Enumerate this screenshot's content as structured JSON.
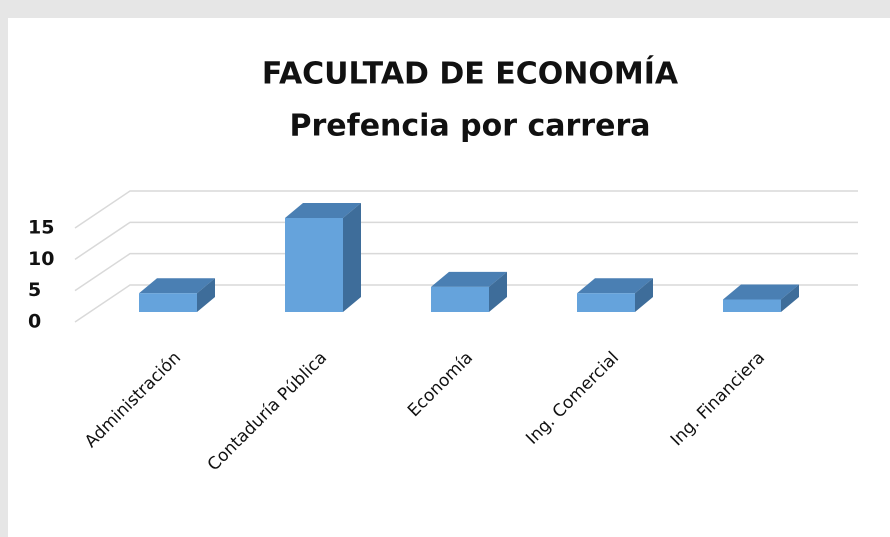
{
  "chart_data": {
    "type": "bar3d",
    "title": "FACULTAD DE ECONOMÍA",
    "subtitle": "Prefencia por carrera",
    "categories": [
      "Administración",
      "Contaduría Pública",
      "Economía",
      "Ing. Comercial",
      "Ing. Financiera"
    ],
    "values": [
      3,
      15,
      4,
      3,
      2
    ],
    "color": "#65a3dc",
    "ylim": [
      0,
      15
    ],
    "yticks": [
      0,
      5,
      10,
      15
    ],
    "grid": true
  }
}
